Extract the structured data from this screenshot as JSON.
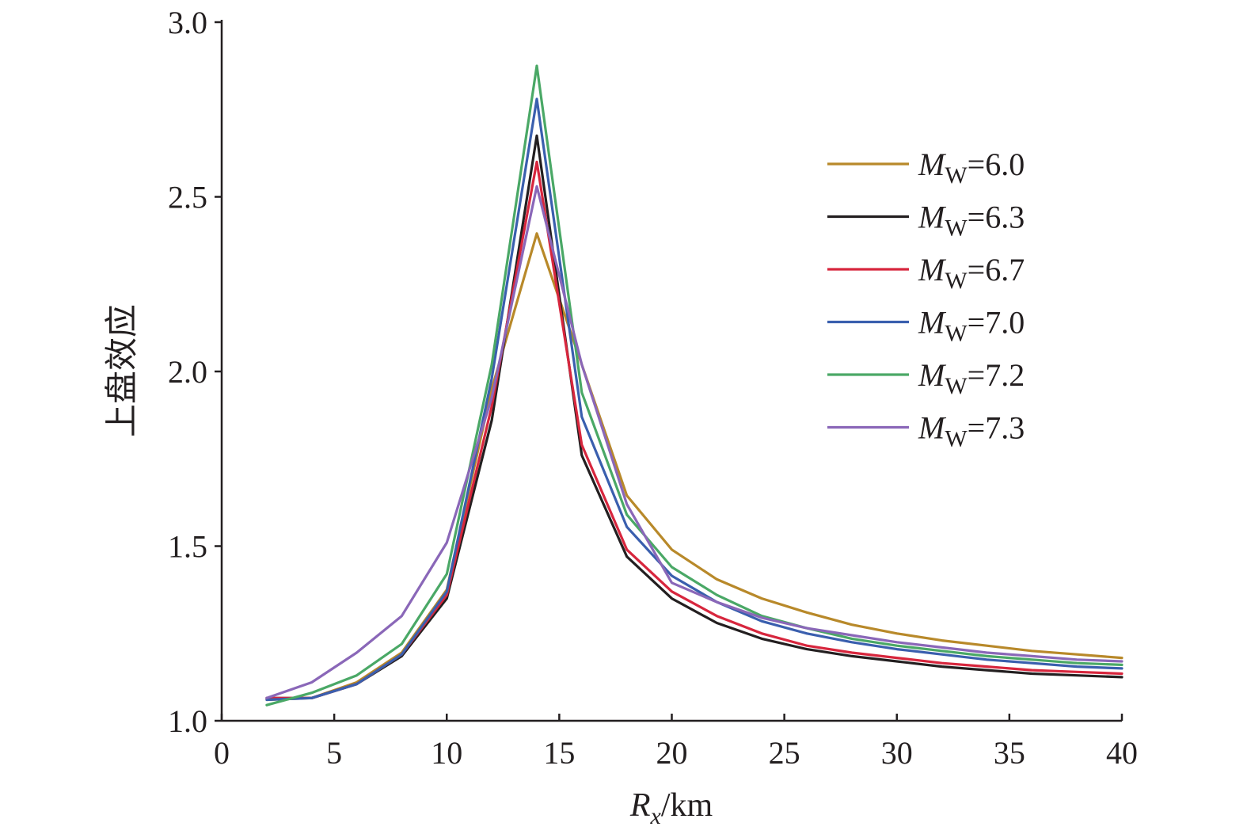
{
  "chart_data": {
    "type": "line",
    "title": "",
    "xlabel": {
      "main": "R",
      "sub": "x",
      "unit": "/km"
    },
    "ylabel": "上盘效应",
    "xlim": [
      0,
      40
    ],
    "ylim": [
      1.0,
      3.0
    ],
    "xticks": [
      0,
      5,
      10,
      15,
      20,
      25,
      30,
      35,
      40
    ],
    "yticks": [
      1.0,
      1.5,
      2.0,
      2.5,
      3.0
    ],
    "xtick_labels": [
      "0",
      "5",
      "10",
      "15",
      "20",
      "25",
      "30",
      "35",
      "40"
    ],
    "ytick_labels": [
      "1.0",
      "1.5",
      "2.0",
      "2.5",
      "3.0"
    ],
    "grid": false,
    "legend_position": "right",
    "x": [
      2,
      4,
      6,
      8,
      10,
      12,
      14,
      16,
      18,
      20,
      22,
      24,
      26,
      28,
      30,
      32,
      34,
      36,
      38,
      40
    ],
    "series": [
      {
        "label_prefix": "M",
        "label_sub": "W",
        "label_value": "=6.0",
        "color": "#b8892a",
        "values": [
          1.06,
          1.065,
          1.11,
          1.195,
          1.375,
          1.95,
          2.395,
          2.02,
          1.645,
          1.49,
          1.405,
          1.35,
          1.31,
          1.275,
          1.25,
          1.23,
          1.215,
          1.2,
          1.19,
          1.18
        ]
      },
      {
        "label_prefix": "M",
        "label_sub": "W",
        "label_value": "=6.3",
        "color": "#231f20",
        "values": [
          1.065,
          1.065,
          1.105,
          1.185,
          1.35,
          1.86,
          2.675,
          1.76,
          1.47,
          1.35,
          1.28,
          1.235,
          1.205,
          1.185,
          1.17,
          1.155,
          1.145,
          1.135,
          1.13,
          1.125
        ]
      },
      {
        "label_prefix": "M",
        "label_sub": "W",
        "label_value": "=6.7",
        "color": "#d7263d",
        "values": [
          1.065,
          1.065,
          1.105,
          1.19,
          1.36,
          1.9,
          2.6,
          1.79,
          1.49,
          1.37,
          1.3,
          1.25,
          1.215,
          1.195,
          1.18,
          1.165,
          1.155,
          1.145,
          1.14,
          1.135
        ]
      },
      {
        "label_prefix": "M",
        "label_sub": "W",
        "label_value": "=7.0",
        "color": "#3a5fae",
        "values": [
          1.06,
          1.065,
          1.105,
          1.19,
          1.37,
          1.98,
          2.78,
          1.87,
          1.555,
          1.415,
          1.34,
          1.285,
          1.25,
          1.225,
          1.205,
          1.19,
          1.175,
          1.165,
          1.155,
          1.15
        ]
      },
      {
        "label_prefix": "M",
        "label_sub": "W",
        "label_value": "=7.2",
        "color": "#4aa866",
        "values": [
          1.045,
          1.08,
          1.13,
          1.22,
          1.42,
          2.02,
          2.875,
          1.94,
          1.59,
          1.44,
          1.36,
          1.3,
          1.265,
          1.235,
          1.215,
          1.2,
          1.185,
          1.175,
          1.165,
          1.16
        ]
      },
      {
        "label_prefix": "M",
        "label_sub": "W",
        "label_value": "=7.3",
        "color": "#8a67b8",
        "values": [
          1.065,
          1.11,
          1.195,
          1.3,
          1.51,
          1.925,
          2.53,
          2.02,
          1.62,
          1.395,
          1.34,
          1.295,
          1.265,
          1.245,
          1.225,
          1.21,
          1.195,
          1.185,
          1.175,
          1.17
        ]
      }
    ]
  }
}
